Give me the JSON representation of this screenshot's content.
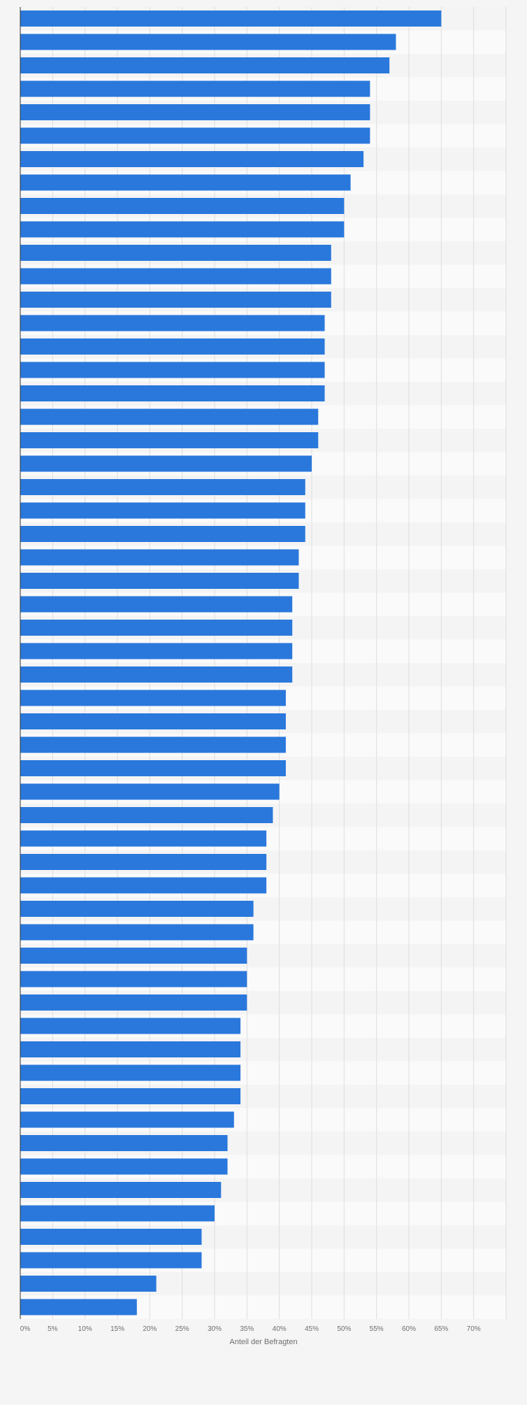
{
  "chart_data": {
    "type": "bar",
    "orientation": "horizontal",
    "xlabel": "Anteil der Befragten",
    "xlim": [
      0,
      75
    ],
    "tick_values": [
      0,
      5,
      10,
      15,
      20,
      25,
      30,
      35,
      40,
      45,
      50,
      55,
      60,
      65,
      70
    ],
    "tick_labels": [
      "0%",
      "5%",
      "10%",
      "15%",
      "20%",
      "25%",
      "30%",
      "35%",
      "40%",
      "45%",
      "50%",
      "55%",
      "60%",
      "65%",
      "70%"
    ],
    "grid": true,
    "bar_color": "#2a78dc",
    "values": [
      65,
      58,
      57,
      54,
      54,
      54,
      53,
      51,
      50,
      50,
      48,
      48,
      48,
      47,
      47,
      47,
      47,
      46,
      46,
      45,
      44,
      44,
      44,
      43,
      43,
      42,
      42,
      42,
      42,
      41,
      41,
      41,
      41,
      40,
      39,
      38,
      38,
      38,
      36,
      36,
      35,
      35,
      35,
      34,
      34,
      34,
      34,
      33,
      32,
      32,
      31,
      30,
      28,
      28,
      21,
      18
    ]
  }
}
